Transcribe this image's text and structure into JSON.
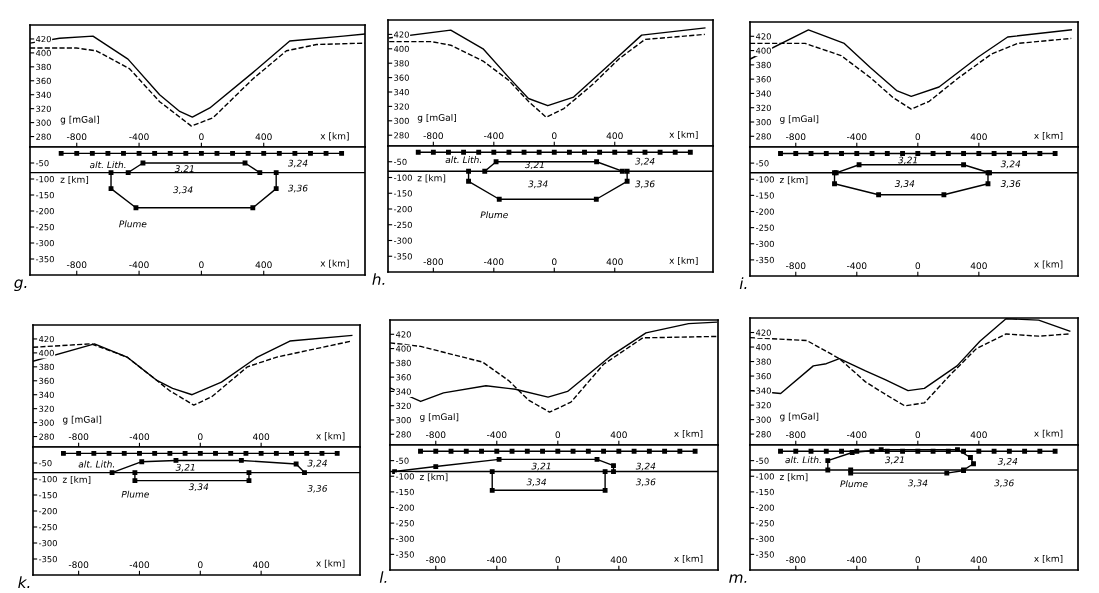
{
  "chart_data": [
    {
      "type": "line",
      "xlabel": "x [km]",
      "ylabel": "g [mGal]",
      "xlim": [
        -1100,
        1050
      ],
      "xticks": [
        -800,
        -400,
        0,
        400
      ],
      "ylim": [
        265,
        440
      ],
      "yticks": [
        280,
        300,
        320,
        340,
        360,
        380,
        400,
        420
      ],
      "series": [
        {
          "color": "#000000",
          "line_style": "solid",
          "x": [
            -1100,
            -910,
            -696,
            -471,
            -268,
            -139,
            -58,
            54,
            332,
            567,
            910,
            1049
          ],
          "values": [
            414,
            421,
            424,
            391,
            340,
            316,
            308,
            321,
            372,
            417,
            424,
            427
          ]
        },
        {
          "color": "#000000",
          "line_style": "dashed",
          "x": [
            -1100,
            -803,
            -675,
            -460,
            -268,
            -64,
            75,
            332,
            546,
            739,
            1049
          ],
          "values": [
            407,
            407,
            403,
            377,
            330,
            295,
            307,
            363,
            403,
            412,
            414
          ]
        }
      ]
    },
    {
      "type": "line",
      "xlabel": "x [km]",
      "ylabel": "z [km]",
      "xlim": [
        -1100,
        1050
      ],
      "xticks": [
        -800,
        -400,
        0,
        400
      ],
      "ylim": [
        -400,
        0
      ],
      "yticks": [
        -350,
        -300,
        -250,
        -200,
        -150,
        -100,
        -50
      ],
      "annotations": [
        "g.",
        "3,21",
        "3,24",
        "3,34",
        "3,36",
        "alt. Lith.",
        "Plume"
      ],
      "series": [
        {
          "color": "#000000",
          "line_style": "solid",
          "marker": "square",
          "x": [
            -900,
            -800,
            -700,
            -600,
            -500,
            -400,
            -300,
            -200,
            -100,
            0,
            100,
            200,
            300,
            400,
            500,
            600,
            700,
            800,
            900
          ],
          "values": [
            -20,
            -20,
            -20,
            -20,
            -20,
            -20,
            -20,
            -20,
            -20,
            -20,
            -20,
            -20,
            -20,
            -20,
            -20,
            -20,
            -20,
            -20,
            -20
          ]
        },
        {
          "color": "#000000",
          "line_style": "solid",
          "x": [
            -1100,
            1050
          ],
          "values": [
            -80,
            -80
          ]
        },
        {
          "color": "#000000",
          "line_style": "solid",
          "marker": "square",
          "x": [
            -470,
            -375,
            280,
            375
          ],
          "values": [
            -80,
            -50,
            -50,
            -80
          ]
        },
        {
          "color": "#000000",
          "line_style": "solid",
          "marker": "square",
          "x": [
            -580,
            -580,
            -420,
            330,
            480,
            480
          ],
          "values": [
            -80,
            -130,
            -190,
            -190,
            -130,
            -80
          ]
        }
      ]
    },
    {
      "type": "line",
      "xlabel": "x [km]",
      "ylabel": "g [mGal]",
      "xlim": [
        -1100,
        1050
      ],
      "xticks": [
        -800,
        -400,
        0,
        400
      ],
      "ylim": [
        265,
        440
      ],
      "yticks": [
        280,
        300,
        320,
        340,
        360,
        380,
        400,
        420
      ],
      "series": [
        {
          "color": "#000000",
          "line_style": "solid",
          "x": [
            -1092,
            -685,
            -471,
            -300,
            -171,
            -43,
            128,
            385,
            578,
            996
          ],
          "values": [
            415,
            426,
            400,
            360,
            331,
            321,
            333,
            382,
            419,
            429
          ]
        },
        {
          "color": "#000000",
          "line_style": "dashed",
          "x": [
            -1092,
            -814,
            -685,
            -471,
            -300,
            -171,
            -54,
            64,
            257,
            428,
            600,
            996
          ],
          "values": [
            410,
            410,
            405,
            383,
            356,
            327,
            305,
            317,
            351,
            386,
            413,
            420
          ]
        }
      ]
    },
    {
      "type": "line",
      "xlabel": "x [km]",
      "ylabel": "z [km]",
      "xlim": [
        -1100,
        1050
      ],
      "xticks": [
        -800,
        -400,
        0,
        400
      ],
      "ylim": [
        -400,
        0
      ],
      "yticks": [
        -350,
        -300,
        -250,
        -200,
        -150,
        -100,
        -50
      ],
      "annotations": [
        "h.",
        "3,21",
        "3,24",
        "3,34",
        "3,36",
        "alt. Lith.",
        "Plume"
      ],
      "series": [
        {
          "color": "#000000",
          "line_style": "solid",
          "marker": "square",
          "x": [
            -900,
            -800,
            -700,
            -600,
            -500,
            -400,
            -300,
            -200,
            -100,
            0,
            100,
            200,
            300,
            400,
            500,
            600,
            700,
            800,
            900
          ],
          "values": [
            -20,
            -20,
            -20,
            -20,
            -20,
            -20,
            -20,
            -20,
            -20,
            -20,
            -20,
            -20,
            -20,
            -20,
            -20,
            -20,
            -20,
            -20,
            -20
          ]
        },
        {
          "color": "#000000",
          "line_style": "solid",
          "x": [
            -1100,
            1050
          ],
          "values": [
            -80,
            -80
          ]
        },
        {
          "color": "#000000",
          "line_style": "solid",
          "marker": "square",
          "x": [
            -460,
            -385,
            280,
            450
          ],
          "values": [
            -80,
            -50,
            -50,
            -80
          ]
        },
        {
          "color": "#000000",
          "line_style": "solid",
          "marker": "square",
          "x": [
            -567,
            -567,
            -364,
            278,
            482,
            482
          ],
          "values": [
            -80,
            -112,
            -169,
            -169,
            -112,
            -80
          ]
        }
      ]
    },
    {
      "type": "line",
      "xlabel": "x [km]",
      "ylabel": "g [mGal]",
      "xlim": [
        -1100,
        1050
      ],
      "xticks": [
        -800,
        -400,
        0,
        400
      ],
      "ylim": [
        265,
        440
      ],
      "yticks": [
        280,
        300,
        320,
        340,
        360,
        380,
        400,
        420
      ],
      "series": [
        {
          "color": "#000000",
          "line_style": "solid",
          "x": [
            -1100,
            -717,
            -482,
            -310,
            -139,
            -43,
            139,
            396,
            589,
            1006
          ],
          "values": [
            388,
            429,
            410,
            376,
            344,
            336,
            349,
            391,
            419,
            429
          ]
        },
        {
          "color": "#000000",
          "line_style": "dashed",
          "x": [
            -1100,
            -739,
            -503,
            -310,
            -161,
            -43,
            75,
            268,
            482,
            653,
            1006
          ],
          "values": [
            410,
            410,
            393,
            362,
            334,
            318,
            329,
            362,
            395,
            410,
            417
          ]
        }
      ]
    },
    {
      "type": "line",
      "xlabel": "x [km]",
      "ylabel": "z [km]",
      "xlim": [
        -1100,
        1050
      ],
      "xticks": [
        -800,
        -400,
        0,
        400
      ],
      "ylim": [
        -400,
        0
      ],
      "yticks": [
        -350,
        -300,
        -250,
        -200,
        -150,
        -100,
        -50
      ],
      "annotations": [
        "i.",
        "3,21",
        "3,24",
        "3,34",
        "3,36"
      ],
      "series": [
        {
          "color": "#000000",
          "line_style": "solid",
          "marker": "square",
          "x": [
            -900,
            -800,
            -700,
            -600,
            -500,
            -400,
            -300,
            -200,
            -100,
            0,
            100,
            200,
            300,
            400,
            500,
            600,
            700,
            800,
            900
          ],
          "values": [
            -20,
            -20,
            -20,
            -20,
            -20,
            -20,
            -20,
            -20,
            -20,
            -20,
            -20,
            -20,
            -20,
            -20,
            -20,
            -20,
            -20,
            -20,
            -20
          ]
        },
        {
          "color": "#000000",
          "line_style": "solid",
          "x": [
            -1100,
            1050
          ],
          "values": [
            -80,
            -80
          ]
        },
        {
          "color": "#000000",
          "line_style": "solid",
          "marker": "square",
          "x": [
            -535,
            -385,
            300,
            470
          ],
          "values": [
            -80,
            -55,
            -55,
            -80
          ]
        },
        {
          "color": "#000000",
          "line_style": "solid",
          "marker": "square",
          "x": [
            -546,
            -546,
            -257,
            171,
            460,
            460
          ],
          "values": [
            -80,
            -114,
            -148,
            -148,
            -114,
            -80
          ]
        }
      ]
    },
    {
      "type": "line",
      "xlabel": "x [km]",
      "ylabel": "g [mGal]",
      "xlim": [
        -1100,
        1050
      ],
      "xticks": [
        -800,
        -400,
        0,
        400
      ],
      "ylim": [
        265,
        440
      ],
      "yticks": [
        280,
        300,
        320,
        340,
        360,
        380,
        400,
        420
      ],
      "series": [
        {
          "color": "#000000",
          "line_style": "solid",
          "x": [
            -1100,
            -696,
            -482,
            -289,
            -182,
            -54,
            139,
            375,
            589,
            996
          ],
          "values": [
            388,
            413,
            394,
            361,
            349,
            340,
            358,
            394,
            417,
            425
          ]
        },
        {
          "color": "#000000",
          "line_style": "dashed",
          "x": [
            -1100,
            -717,
            -482,
            -289,
            -203,
            -43,
            75,
            310,
            503,
            996
          ],
          "values": [
            408,
            413,
            394,
            361,
            346,
            325,
            337,
            380,
            394,
            417
          ]
        }
      ]
    },
    {
      "type": "line",
      "xlabel": "x [km]",
      "ylabel": "z [km]",
      "xlim": [
        -1100,
        1050
      ],
      "xticks": [
        -800,
        -400,
        0,
        400
      ],
      "ylim": [
        -400,
        0
      ],
      "yticks": [
        -350,
        -300,
        -250,
        -200,
        -150,
        -100,
        -50
      ],
      "annotations": [
        "k.",
        "3,21",
        "3,24",
        "3,34",
        "3,36",
        "alt. Lith.",
        "Plume"
      ],
      "series": [
        {
          "color": "#000000",
          "line_style": "solid",
          "marker": "square",
          "x": [
            -900,
            -800,
            -700,
            -600,
            -500,
            -400,
            -300,
            -200,
            -100,
            0,
            100,
            200,
            300,
            400,
            500,
            600,
            700,
            800,
            900
          ],
          "values": [
            -20,
            -20,
            -20,
            -20,
            -20,
            -20,
            -20,
            -20,
            -20,
            -20,
            -20,
            -20,
            -20,
            -20,
            -20,
            -20,
            -20,
            -20,
            -20
          ]
        },
        {
          "color": "#000000",
          "line_style": "solid",
          "x": [
            -1100,
            1050
          ],
          "values": [
            -80,
            -80
          ]
        },
        {
          "color": "#000000",
          "line_style": "solid",
          "marker": "square",
          "x": [
            -580,
            -385,
            -160,
            270,
            630,
            685
          ],
          "values": [
            -80,
            -46,
            -42,
            -42,
            -53,
            -80
          ]
        },
        {
          "color": "#000000",
          "line_style": "solid",
          "marker": "square",
          "x": [
            -430,
            -430,
            320,
            320
          ],
          "values": [
            -80,
            -105,
            -105,
            -80
          ]
        }
      ]
    },
    {
      "type": "line",
      "xlabel": "x [km]",
      "ylabel": "g [mGal]",
      "xlim": [
        -1100,
        1050
      ],
      "xticks": [
        -800,
        -400,
        0,
        400
      ],
      "ylim": [
        265,
        440
      ],
      "yticks": [
        280,
        300,
        320,
        340,
        360,
        380,
        400,
        420
      ],
      "series": [
        {
          "color": "#000000",
          "line_style": "solid",
          "x": [
            -1100,
            -899,
            -749,
            -471,
            -278,
            -64,
            64,
            343,
            578,
            857,
            1040
          ],
          "values": [
            345,
            326,
            338,
            348,
            343,
            332,
            340,
            389,
            422,
            435,
            437
          ]
        },
        {
          "color": "#000000",
          "line_style": "dashed",
          "x": [
            -1100,
            -899,
            -492,
            -321,
            -193,
            -54,
            86,
            300,
            557,
            1040
          ],
          "values": [
            408,
            403,
            381,
            355,
            328,
            311,
            325,
            378,
            415,
            417
          ]
        }
      ]
    },
    {
      "type": "line",
      "xlabel": "x [km]",
      "ylabel": "z [km]",
      "xlim": [
        -1100,
        1050
      ],
      "xticks": [
        -800,
        -400,
        0,
        400
      ],
      "ylim": [
        -400,
        0
      ],
      "yticks": [
        -350,
        -300,
        -250,
        -200,
        -150,
        -100,
        -50
      ],
      "annotations": [
        "l.",
        "3,21",
        "3,24",
        "3,34",
        "3,36"
      ],
      "series": [
        {
          "color": "#000000",
          "line_style": "solid",
          "marker": "square",
          "x": [
            -900,
            -800,
            -700,
            -600,
            -500,
            -400,
            -300,
            -200,
            -100,
            0,
            100,
            200,
            300,
            400,
            500,
            600,
            700,
            800,
            900
          ],
          "values": [
            -20,
            -20,
            -20,
            -20,
            -20,
            -20,
            -20,
            -20,
            -20,
            -20,
            -20,
            -20,
            -20,
            -20,
            -20,
            -20,
            -20,
            -20,
            -20
          ]
        },
        {
          "color": "#000000",
          "line_style": "solid",
          "x": [
            -1100,
            1050
          ],
          "values": [
            -85,
            -85
          ]
        },
        {
          "color": "#000000",
          "line_style": "solid",
          "marker": "square",
          "x": [
            -1070,
            -800,
            -385,
            257,
            365,
            365
          ],
          "values": [
            -85,
            -69,
            -46,
            -46,
            -66,
            -85
          ]
        },
        {
          "color": "#000000",
          "line_style": "solid",
          "marker": "square",
          "x": [
            -430,
            -430,
            310,
            310
          ],
          "values": [
            -85,
            -145,
            -145,
            -85
          ]
        }
      ]
    },
    {
      "type": "line",
      "xlabel": "x [km]",
      "ylabel": "g [mGal]",
      "xlim": [
        -1100,
        1050
      ],
      "xticks": [
        -800,
        -400,
        0,
        400
      ],
      "ylim": [
        265,
        440
      ],
      "yticks": [
        280,
        300,
        320,
        340,
        360,
        380,
        400,
        420
      ],
      "series": [
        {
          "color": "#000000",
          "line_style": "solid",
          "x": [
            -1100,
            -899,
            -685,
            -600,
            -514,
            -343,
            -214,
            -64,
            43,
            257,
            407,
            578,
            792,
            996
          ],
          "values": [
            340,
            336,
            374,
            377,
            384,
            367,
            355,
            340,
            343,
            374,
            408,
            439,
            437,
            422
          ]
        },
        {
          "color": "#000000",
          "line_style": "dashed",
          "x": [
            -1100,
            -728,
            -514,
            -343,
            -214,
            -86,
            43,
            214,
            385,
            578,
            792,
            996
          ],
          "values": [
            413,
            409,
            384,
            352,
            335,
            319,
            323,
            362,
            398,
            418,
            415,
            418
          ]
        }
      ]
    },
    {
      "type": "line",
      "xlabel": "x [km]",
      "ylabel": "z [km]",
      "xlim": [
        -1100,
        1050
      ],
      "xticks": [
        -800,
        -400,
        0,
        400
      ],
      "ylim": [
        -400,
        0
      ],
      "yticks": [
        -350,
        -300,
        -250,
        -200,
        -150,
        -100,
        -50
      ],
      "annotations": [
        "m.",
        "3,21",
        "3,24",
        "3,34",
        "3,36",
        "alt. Lith.",
        "Plume"
      ],
      "series": [
        {
          "color": "#000000",
          "line_style": "solid",
          "marker": "square",
          "x": [
            -900,
            -800,
            -700,
            -600,
            -500,
            -400,
            -300,
            -200,
            -100,
            0,
            100,
            200,
            300,
            400,
            500,
            600,
            700,
            800,
            900
          ],
          "values": [
            -20,
            -20,
            -20,
            -20,
            -20,
            -20,
            -20,
            -20,
            -20,
            -20,
            -20,
            -20,
            -20,
            -20,
            -20,
            -20,
            -20,
            -20,
            -20
          ]
        },
        {
          "color": "#000000",
          "line_style": "solid",
          "x": [
            -1100,
            1050
          ],
          "values": [
            -80,
            -80
          ]
        },
        {
          "color": "#000000",
          "line_style": "solid",
          "marker": "square",
          "x": [
            -590,
            -590,
            -430,
            -240,
            260,
            345,
            365,
            300
          ],
          "values": [
            -80,
            -50,
            -24,
            -15,
            -15,
            -40,
            -60,
            -80
          ]
        },
        {
          "color": "#000000",
          "line_style": "solid",
          "marker": "square",
          "x": [
            -440,
            -440,
            190,
            300
          ],
          "values": [
            -80,
            -90,
            -90,
            -82
          ]
        }
      ]
    }
  ]
}
